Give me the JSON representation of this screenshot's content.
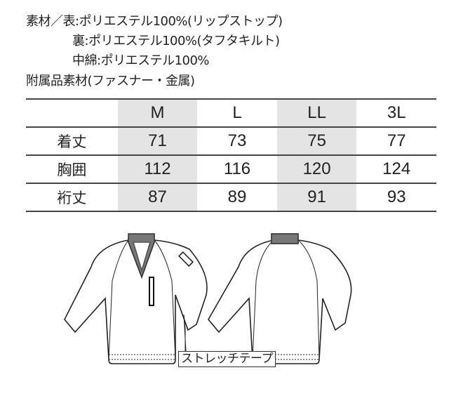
{
  "materials": {
    "line1": "素材／表:ポリエステル100%(リップストップ)",
    "line2": "裏:ポリエステル100%(タフタキルト)",
    "line3": "中綿:ポリエステル100%",
    "line4": "附属品素材(ファスナー・金属)"
  },
  "size_table": {
    "headers": [
      "",
      "M",
      "L",
      "LL",
      "3L"
    ],
    "rows": [
      {
        "label": "着丈",
        "values": [
          "71",
          "73",
          "75",
          "77"
        ]
      },
      {
        "label": "胸囲",
        "values": [
          "112",
          "116",
          "120",
          "124"
        ]
      },
      {
        "label": "裄丈",
        "values": [
          "87",
          "89",
          "91",
          "93"
        ]
      }
    ],
    "shade_color": "#e4e4e4"
  },
  "illustration": {
    "callout": "ストレッチテープ"
  }
}
